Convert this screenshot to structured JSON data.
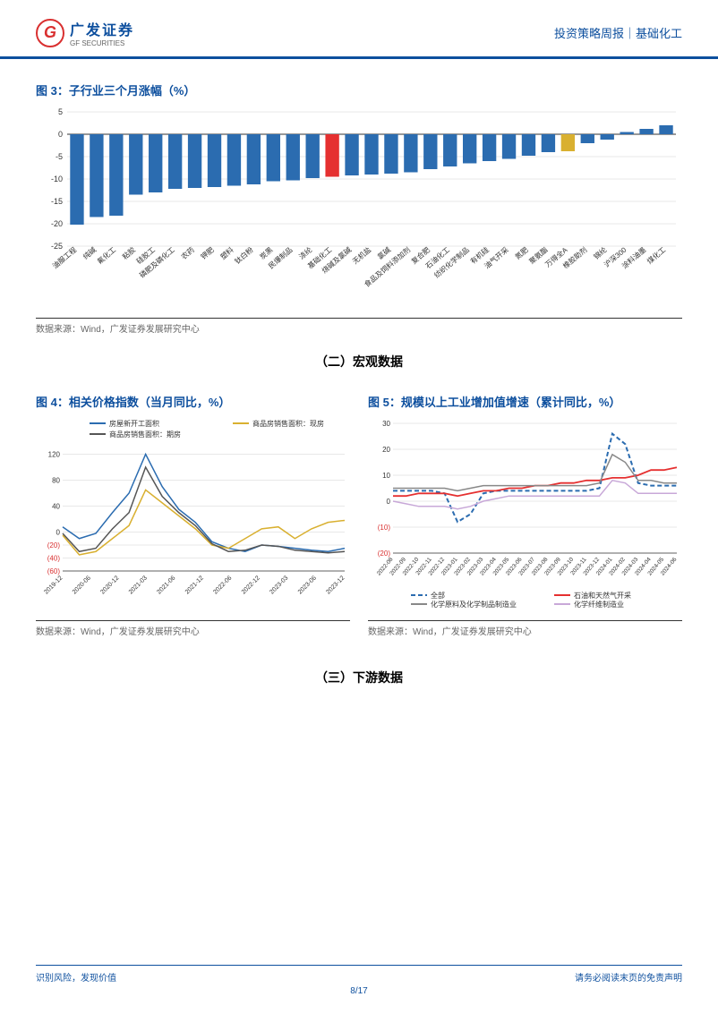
{
  "header": {
    "logo_cn": "广发证券",
    "logo_en": "GF SECURITIES",
    "right": "投资策略周报｜基础化工"
  },
  "fig3": {
    "title": "图 3：子行业三个月涨幅（%）",
    "type": "bar",
    "source": "数据来源：Wind，广发证券发展研究中心",
    "ylim": [
      -25,
      5
    ],
    "yticks": [
      -25,
      -20,
      -15,
      -10,
      -5,
      0,
      5
    ],
    "grid_color": "#d0d0d0",
    "axis_color": "#333333",
    "default_bar_color": "#2b6cb0",
    "highlight_colors": {
      "基础化工": "#e53030",
      "万得全A": "#d9b030"
    },
    "categories": [
      "油服工程",
      "纯碱",
      "氟化工",
      "粘胶",
      "硅胶工",
      "磷肥及磷化工",
      "农药",
      "钾肥",
      "塑料",
      "钛白粉",
      "炭黑",
      "民爆制品",
      "涤纶",
      "基础化工",
      "烧碱及氯碱",
      "无机盐",
      "氯碱",
      "食品及饲料添加剂",
      "复合肥",
      "石油化工",
      "纺织化学制品",
      "有机硅",
      "油气开采",
      "氮肥",
      "聚氨酯",
      "万得全A",
      "橡胶助剂",
      "锦纶",
      "沪深300",
      "涂料油墨",
      "煤化工"
    ],
    "values": [
      -20.2,
      -18.5,
      -18.2,
      -13.5,
      -13.0,
      -12.2,
      -12.0,
      -11.8,
      -11.5,
      -11.2,
      -10.5,
      -10.3,
      -9.8,
      -9.5,
      -9.2,
      -9.0,
      -8.8,
      -8.5,
      -7.8,
      -7.2,
      -6.5,
      -6.0,
      -5.5,
      -4.8,
      -4.0,
      -3.8,
      -2.0,
      -1.2,
      0.5,
      1.2,
      2.0
    ],
    "label_fontsize": 8
  },
  "section2_title": "（二）宏观数据",
  "fig4": {
    "title": "图 4：相关价格指数（当月同比，%）",
    "type": "line",
    "source": "数据来源：Wind，广发证券发展研究中心",
    "ylim": [
      -60,
      140
    ],
    "yticks": [
      -60,
      -40,
      -20,
      0,
      40,
      80,
      120
    ],
    "ytick_labels": [
      "(60)",
      "(40)",
      "(20)",
      "0",
      "40",
      "80",
      "120"
    ],
    "neg_color": "#d93030",
    "grid_color": "#d0d0d0",
    "x_labels": [
      "2019-12",
      "2020-06",
      "2020-12",
      "2021-03",
      "2021-06",
      "2021-12",
      "2022-06",
      "2022-12",
      "2023-03",
      "2023-06",
      "2023-12"
    ],
    "series": [
      {
        "name": "房屋新开工面积",
        "color": "#2b6cb0",
        "width": 1.5,
        "data": [
          8,
          -10,
          -2,
          30,
          60,
          120,
          70,
          35,
          15,
          -15,
          -25,
          -30,
          -20,
          -22,
          -25,
          -28,
          -30,
          -25
        ]
      },
      {
        "name": "商品房销售面积：现房",
        "color": "#d9b030",
        "width": 1.5,
        "data": [
          -5,
          -35,
          -30,
          -10,
          10,
          65,
          45,
          25,
          5,
          -20,
          -25,
          -10,
          5,
          8,
          -10,
          5,
          15,
          18
        ]
      },
      {
        "name": "商品房销售面积：期房",
        "color": "#555555",
        "width": 1.5,
        "data": [
          -2,
          -30,
          -25,
          5,
          30,
          100,
          55,
          30,
          10,
          -18,
          -30,
          -28,
          -20,
          -22,
          -28,
          -30,
          -32,
          -30
        ]
      }
    ],
    "legend_fontsize": 8,
    "label_fontsize": 7
  },
  "fig5": {
    "title": "图 5：规模以上工业增加值增速（累计同比，%）",
    "type": "line",
    "source": "数据来源：Wind，广发证券发展研究中心",
    "ylim": [
      -20,
      30
    ],
    "yticks": [
      -20,
      -10,
      0,
      10,
      20,
      30
    ],
    "ytick_labels": [
      "(20)",
      "(10)",
      "0",
      "10",
      "20",
      "30"
    ],
    "neg_color": "#d93030",
    "grid_color": "#d0d0d0",
    "x_labels": [
      "2022-08",
      "2022-09",
      "2022-10",
      "2022-11",
      "2022-12",
      "2023-01",
      "2023-02",
      "2023-03",
      "2023-04",
      "2023-05",
      "2023-06",
      "2023-07",
      "2023-08",
      "2023-09",
      "2023-10",
      "2023-11",
      "2023-12",
      "2024-01",
      "2024-02",
      "2024-03",
      "2024-04",
      "2024-05",
      "2024-06"
    ],
    "series": [
      {
        "name": "全部",
        "color": "#2b6cb0",
        "width": 2,
        "dash": "5,3",
        "data": [
          4,
          4,
          4,
          4,
          3,
          -8,
          -5,
          3,
          4,
          4,
          4,
          4,
          4,
          4,
          4,
          4,
          5,
          26,
          22,
          7,
          6,
          6,
          6
        ]
      },
      {
        "name": "石油和天然气开采",
        "color": "#e53030",
        "width": 1.8,
        "data": [
          2,
          2,
          3,
          3,
          3,
          2,
          3,
          4,
          4,
          5,
          5,
          6,
          6,
          7,
          7,
          8,
          8,
          9,
          9,
          10,
          12,
          12,
          13
        ]
      },
      {
        "name": "化学原料及化学制品制造业",
        "color": "#888888",
        "width": 1.5,
        "data": [
          5,
          5,
          5,
          5,
          5,
          4,
          5,
          6,
          6,
          6,
          6,
          6,
          6,
          6,
          6,
          6,
          7,
          18,
          15,
          8,
          8,
          7,
          7
        ]
      },
      {
        "name": "化学纤维制造业",
        "color": "#c8a8d8",
        "width": 1.5,
        "data": [
          0,
          -1,
          -2,
          -2,
          -2,
          -3,
          -2,
          0,
          1,
          2,
          2,
          2,
          2,
          2,
          2,
          2,
          2,
          8,
          7,
          3,
          3,
          3,
          3
        ]
      }
    ],
    "legend_fontsize": 8,
    "label_fontsize": 6.5
  },
  "section3_title": "（三）下游数据",
  "footer": {
    "left": "识别风险，发现价值",
    "right": "请务必阅读末页的免责声明",
    "page": "8/17"
  }
}
